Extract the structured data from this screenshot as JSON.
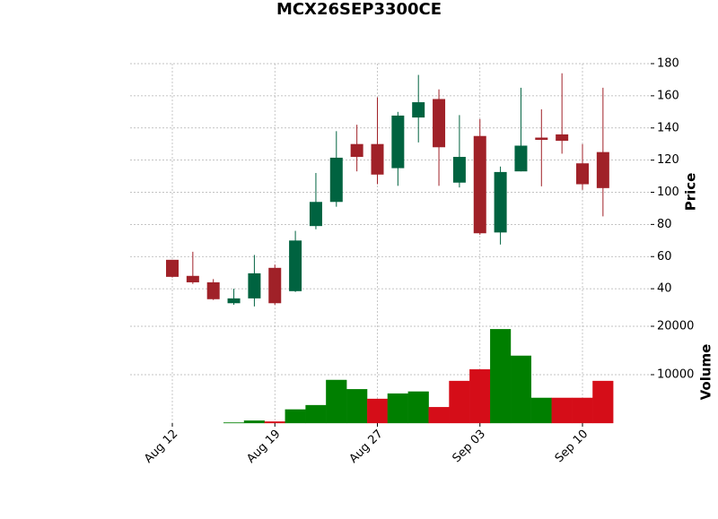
{
  "chart_data": {
    "type": "candlestick",
    "title": "MCX26SEP3300CE",
    "categories": [
      "Aug 12",
      null,
      null,
      null,
      null,
      "Aug 19",
      null,
      null,
      null,
      null,
      "Aug 27",
      null,
      null,
      null,
      null,
      "Sep 03",
      null,
      null,
      null,
      null,
      "Sep 10",
      null
    ],
    "open": [
      58,
      48,
      44,
      31,
      34,
      53,
      38.5,
      79,
      94,
      130,
      130,
      115,
      146.5,
      158,
      106,
      135,
      75,
      113,
      134,
      136,
      118,
      125
    ],
    "high": [
      58,
      63,
      46,
      40,
      61,
      55,
      76,
      112,
      138,
      142,
      159,
      150,
      173,
      164,
      148,
      145.5,
      116,
      165,
      151.6,
      174,
      130,
      165
    ],
    "low": [
      47,
      43,
      33,
      30,
      29,
      30,
      38,
      77,
      91,
      113,
      105,
      104,
      131,
      104,
      103,
      73.6,
      67.5,
      113,
      103.7,
      124,
      101.5,
      85
    ],
    "close": [
      47.4,
      44,
      33.5,
      34,
      49.6,
      31,
      70,
      94,
      121.5,
      122,
      111,
      147.7,
      156,
      128,
      122,
      74.5,
      112.6,
      129,
      132.6,
      132,
      105,
      102.6
    ],
    "up_color": "#006340",
    "down_color": "#a02128",
    "ylabel": "Price",
    "ylim": [
      20,
      180
    ],
    "yticks": [
      40,
      60,
      80,
      100,
      120,
      140,
      160,
      180
    ],
    "volume": {
      "label": "Volume",
      "values": [
        0,
        0,
        0,
        100,
        500,
        300,
        2800,
        3700,
        8900,
        7000,
        5000,
        6100,
        6500,
        3300,
        8700,
        11100,
        19400,
        13900,
        5200,
        5200,
        5200,
        8700
      ],
      "up_color": "#007f00",
      "down_color": "#d50d18",
      "ylim": [
        0,
        20000
      ],
      "yticks": [
        10000,
        20000
      ]
    },
    "grid": true
  }
}
